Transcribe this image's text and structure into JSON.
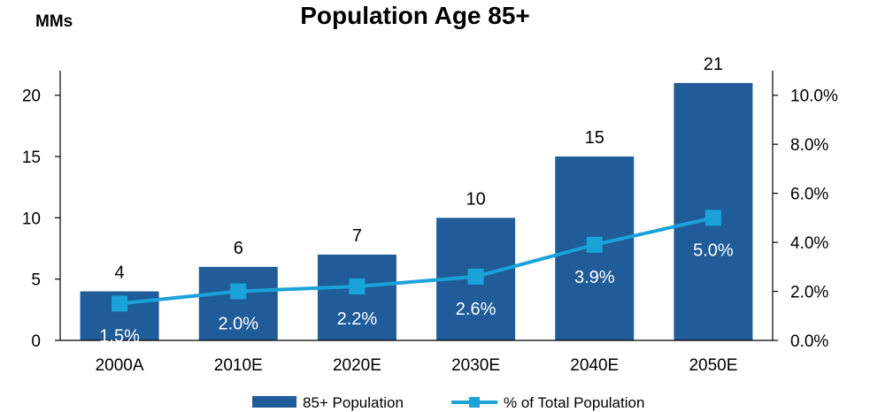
{
  "chart_data": {
    "type": "bar",
    "title": "Population Age 85+",
    "y_unit_label": "MMs",
    "categories": [
      "2000A",
      "2010E",
      "2020E",
      "2030E",
      "2040E",
      "2050E"
    ],
    "series": [
      {
        "name": "85+ Population",
        "type": "bar",
        "axis": "left",
        "values": [
          4,
          6,
          7,
          10,
          15,
          21
        ],
        "labels": [
          "4",
          "6",
          "7",
          "10",
          "15",
          "21"
        ],
        "color": "#1F5C99"
      },
      {
        "name": "% of Total Population",
        "type": "line",
        "axis": "right",
        "values": [
          1.5,
          2.0,
          2.2,
          2.6,
          3.9,
          5.0
        ],
        "labels": [
          "1.5%",
          "2.0%",
          "2.2%",
          "2.6%",
          "3.9%",
          "5.0%"
        ],
        "color": "#1AA3D9"
      }
    ],
    "left_axis": {
      "ylim": [
        0,
        22
      ],
      "ticks": [
        0,
        5,
        10,
        15,
        20
      ],
      "tick_labels": [
        "0",
        "5",
        "10",
        "15",
        "20"
      ]
    },
    "right_axis": {
      "ylim": [
        0,
        11
      ],
      "ticks": [
        0,
        2,
        4,
        6,
        8,
        10
      ],
      "tick_labels": [
        "0.0%",
        "2.0%",
        "4.0%",
        "6.0%",
        "8.0%",
        "10.0%"
      ]
    },
    "grid": false,
    "legend_position": "bottom-center"
  }
}
